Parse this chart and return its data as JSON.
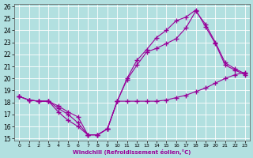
{
  "xlabel": "Windchill (Refroidissement éolien,°C)",
  "ylabel": "",
  "bg_color": "#b2e0e0",
  "grid_color": "#ffffff",
  "line_color": "#990099",
  "xlim_min": -0.5,
  "xlim_max": 23.5,
  "ylim_min": 14.8,
  "ylim_max": 26.2,
  "xticks": [
    0,
    1,
    2,
    3,
    4,
    5,
    6,
    7,
    8,
    9,
    10,
    11,
    12,
    13,
    14,
    15,
    16,
    17,
    18,
    19,
    20,
    21,
    22,
    23
  ],
  "yticks": [
    15,
    16,
    17,
    18,
    19,
    20,
    21,
    22,
    23,
    24,
    25,
    26
  ],
  "line1_x": [
    0,
    1,
    2,
    3,
    4,
    5,
    6,
    7,
    8,
    9,
    10,
    11,
    12,
    13,
    14,
    15,
    16,
    17,
    18,
    19,
    20,
    21,
    22,
    23
  ],
  "line1_y": [
    18.5,
    18.2,
    18.1,
    18.1,
    17.7,
    17.2,
    16.8,
    15.3,
    15.3,
    15.8,
    18.1,
    18.1,
    18.1,
    18.1,
    18.1,
    18.2,
    18.4,
    18.6,
    18.9,
    19.2,
    19.6,
    20.0,
    20.3,
    20.5
  ],
  "line2_x": [
    0,
    1,
    2,
    3,
    4,
    5,
    6,
    7,
    8,
    9,
    10,
    11,
    12,
    13,
    14,
    15,
    16,
    17,
    18,
    19,
    20,
    21,
    22,
    23
  ],
  "line2_y": [
    18.5,
    18.2,
    18.1,
    18.1,
    17.2,
    16.5,
    16.0,
    15.3,
    15.3,
    15.8,
    18.1,
    19.9,
    21.1,
    22.2,
    22.5,
    22.9,
    23.3,
    24.2,
    25.6,
    24.5,
    23.0,
    21.3,
    20.8,
    20.4
  ],
  "line3_x": [
    0,
    1,
    2,
    3,
    4,
    5,
    6,
    7,
    8,
    9,
    10,
    11,
    12,
    13,
    14,
    15,
    16,
    17,
    18,
    19,
    20,
    21,
    22,
    23
  ],
  "line3_y": [
    18.5,
    18.2,
    18.1,
    18.1,
    17.5,
    17.0,
    16.3,
    15.3,
    15.3,
    15.8,
    18.1,
    20.0,
    21.5,
    22.4,
    23.4,
    24.0,
    24.8,
    25.1,
    25.7,
    24.3,
    22.9,
    21.1,
    20.7,
    20.3
  ]
}
